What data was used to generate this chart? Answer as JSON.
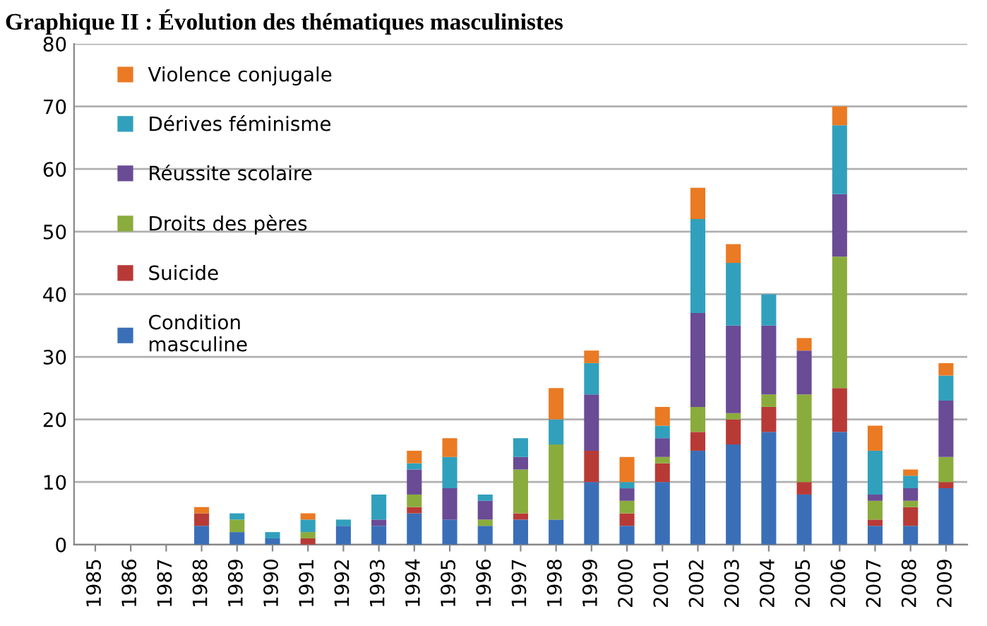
{
  "chart_data": {
    "type": "bar",
    "stacked": true,
    "title": "Graphique II : Évolution des thématiques masculinistes",
    "categories": [
      "1985",
      "1986",
      "1987",
      "1988",
      "1989",
      "1990",
      "1991",
      "1992",
      "1993",
      "1994",
      "1995",
      "1996",
      "1997",
      "1998",
      "1999",
      "2000",
      "2001",
      "2002",
      "2003",
      "2004",
      "2005",
      "2006",
      "2007",
      "2008",
      "2009"
    ],
    "series": [
      {
        "name": "Condition\nmasculine",
        "color": "#3a6fb8",
        "values": [
          0,
          0,
          0,
          3,
          2,
          1,
          0,
          3,
          3,
          5,
          4,
          3,
          4,
          4,
          10,
          3,
          10,
          15,
          16,
          18,
          8,
          18,
          3,
          3,
          9
        ]
      },
      {
        "name": "Suicide",
        "color": "#b83a36",
        "values": [
          0,
          0,
          0,
          2,
          0,
          0,
          1,
          0,
          0,
          1,
          0,
          0,
          1,
          0,
          5,
          2,
          3,
          3,
          4,
          4,
          2,
          7,
          1,
          3,
          1
        ]
      },
      {
        "name": "Droits des pères",
        "color": "#8aac3c",
        "values": [
          0,
          0,
          0,
          0,
          2,
          0,
          1,
          0,
          0,
          2,
          0,
          1,
          7,
          12,
          0,
          2,
          1,
          4,
          1,
          2,
          14,
          21,
          3,
          1,
          4
        ]
      },
      {
        "name": "Réussite scolaire",
        "color": "#6a4b95",
        "values": [
          0,
          0,
          0,
          0,
          0,
          0,
          0,
          0,
          1,
          4,
          5,
          3,
          2,
          0,
          9,
          2,
          3,
          15,
          14,
          11,
          7,
          10,
          1,
          2,
          9
        ]
      },
      {
        "name": "Dérives féminisme",
        "color": "#31a0bd",
        "values": [
          0,
          0,
          0,
          0,
          1,
          1,
          2,
          1,
          4,
          1,
          5,
          1,
          3,
          4,
          5,
          1,
          2,
          15,
          10,
          5,
          0,
          11,
          7,
          2,
          4
        ]
      },
      {
        "name": "Violence conjugale",
        "color": "#ea7a23",
        "values": [
          0,
          0,
          0,
          1,
          0,
          0,
          1,
          0,
          0,
          2,
          3,
          0,
          0,
          5,
          2,
          4,
          3,
          5,
          3,
          0,
          2,
          3,
          4,
          1,
          2
        ]
      }
    ],
    "ylim": [
      0,
      80
    ],
    "yticks": [
      0,
      10,
      20,
      30,
      40,
      50,
      60,
      70,
      80
    ],
    "grid": "y",
    "legend": "top left"
  }
}
